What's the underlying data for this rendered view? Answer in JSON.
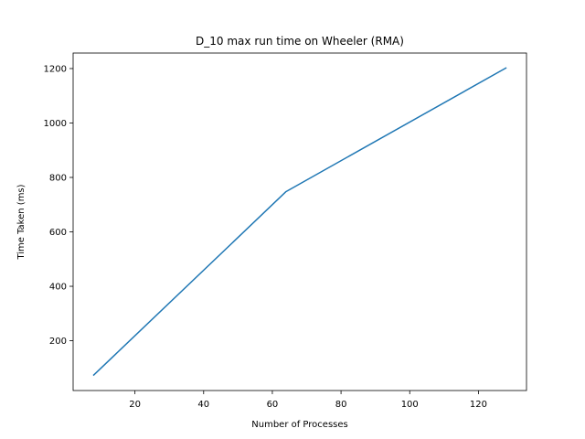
{
  "chart_data": {
    "type": "line",
    "title": "D_10 max run time on Wheeler (RMA)",
    "xlabel": "Number of Processes",
    "ylabel": "Time Taken (ms)",
    "xlim": [
      2,
      134
    ],
    "ylim": [
      17,
      1257
    ],
    "x_ticks": [
      20,
      40,
      60,
      80,
      100,
      120
    ],
    "y_ticks": [
      200,
      400,
      600,
      800,
      1000,
      1200
    ],
    "grid": false,
    "series": [
      {
        "color": "#1f77b4",
        "points": [
          {
            "x": 8,
            "y": 74
          },
          {
            "x": 64,
            "y": 748
          },
          {
            "x": 128,
            "y": 1202
          }
        ]
      }
    ]
  }
}
